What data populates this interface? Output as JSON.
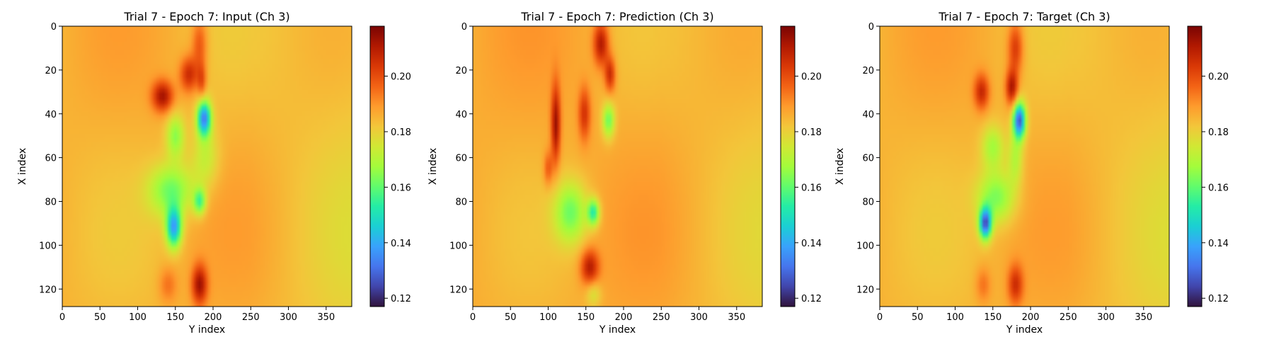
{
  "colors": {
    "colormap": "turbo",
    "stops": [
      "#30123b",
      "#4145ab",
      "#4675ed",
      "#39a2fc",
      "#1bcfd4",
      "#24eca6",
      "#61fc6c",
      "#a4fc3b",
      "#d1e834",
      "#f3c63a",
      "#fe9b2d",
      "#f36315",
      "#d93806",
      "#b11901",
      "#7a0403"
    ]
  },
  "chart_data": [
    {
      "type": "heatmap",
      "title": "Trial 7 - Epoch 7: Input (Ch 3)",
      "xlabel": "Y index",
      "ylabel": "X index",
      "xlim": [
        0,
        384
      ],
      "ylim": [
        128,
        0
      ],
      "xticks": [
        "0",
        "50",
        "100",
        "150",
        "200",
        "250",
        "300",
        "350"
      ],
      "yticks": [
        "0",
        "20",
        "40",
        "60",
        "80",
        "100",
        "120"
      ],
      "colorbar": {
        "range": [
          0.117,
          0.218
        ],
        "ticks": [
          "0.12",
          "0.14",
          "0.16",
          "0.18",
          "0.20"
        ]
      },
      "background": 0.185,
      "features": [
        {
          "x": 182,
          "y": 8,
          "rx": 10,
          "ry": 12,
          "v": 0.2
        },
        {
          "x": 168,
          "y": 22,
          "rx": 12,
          "ry": 8,
          "v": 0.207
        },
        {
          "x": 133,
          "y": 32,
          "rx": 14,
          "ry": 7,
          "v": 0.212
        },
        {
          "x": 185,
          "y": 25,
          "rx": 6,
          "ry": 8,
          "v": 0.2
        },
        {
          "x": 188,
          "y": 42,
          "rx": 9,
          "ry": 8,
          "v": 0.135
        },
        {
          "x": 150,
          "y": 50,
          "rx": 12,
          "ry": 10,
          "v": 0.165
        },
        {
          "x": 190,
          "y": 60,
          "rx": 18,
          "ry": 14,
          "v": 0.172
        },
        {
          "x": 145,
          "y": 75,
          "rx": 30,
          "ry": 12,
          "v": 0.162
        },
        {
          "x": 182,
          "y": 80,
          "rx": 8,
          "ry": 6,
          "v": 0.158
        },
        {
          "x": 148,
          "y": 92,
          "rx": 10,
          "ry": 9,
          "v": 0.14
        },
        {
          "x": 182,
          "y": 118,
          "rx": 10,
          "ry": 9,
          "v": 0.212
        },
        {
          "x": 140,
          "y": 118,
          "rx": 12,
          "ry": 8,
          "v": 0.195
        }
      ]
    },
    {
      "type": "heatmap",
      "title": "Trial 7 - Epoch 7: Prediction (Ch 3)",
      "xlabel": "Y index",
      "ylabel": "X index",
      "xlim": [
        0,
        384
      ],
      "ylim": [
        128,
        0
      ],
      "xticks": [
        "0",
        "50",
        "100",
        "150",
        "200",
        "250",
        "300",
        "350"
      ],
      "yticks": [
        "0",
        "20",
        "40",
        "60",
        "80",
        "100",
        "120"
      ],
      "colorbar": {
        "range": [
          0.117,
          0.218
        ],
        "ticks": [
          "0.12",
          "0.14",
          "0.16",
          "0.18",
          "0.20"
        ]
      },
      "background": 0.186,
      "features": [
        {
          "x": 110,
          "y": 45,
          "rx": 6,
          "ry": 18,
          "v": 0.214
        },
        {
          "x": 170,
          "y": 8,
          "rx": 10,
          "ry": 10,
          "v": 0.212
        },
        {
          "x": 182,
          "y": 22,
          "rx": 7,
          "ry": 8,
          "v": 0.208
        },
        {
          "x": 148,
          "y": 40,
          "rx": 8,
          "ry": 12,
          "v": 0.205
        },
        {
          "x": 180,
          "y": 43,
          "rx": 8,
          "ry": 8,
          "v": 0.162
        },
        {
          "x": 130,
          "y": 85,
          "rx": 22,
          "ry": 14,
          "v": 0.163
        },
        {
          "x": 160,
          "y": 85,
          "rx": 8,
          "ry": 6,
          "v": 0.155
        },
        {
          "x": 155,
          "y": 110,
          "rx": 12,
          "ry": 8,
          "v": 0.21
        },
        {
          "x": 160,
          "y": 122,
          "rx": 10,
          "ry": 6,
          "v": 0.175
        },
        {
          "x": 100,
          "y": 65,
          "rx": 6,
          "ry": 8,
          "v": 0.2
        }
      ]
    },
    {
      "type": "heatmap",
      "title": "Trial 7 - Epoch 7: Target (Ch 3)",
      "xlabel": "Y index",
      "ylabel": "X index",
      "xlim": [
        0,
        384
      ],
      "ylim": [
        128,
        0
      ],
      "xticks": [
        "0",
        "50",
        "100",
        "150",
        "200",
        "250",
        "300",
        "350"
      ],
      "yticks": [
        "0",
        "20",
        "40",
        "60",
        "80",
        "100",
        "120"
      ],
      "colorbar": {
        "range": [
          0.117,
          0.218
        ],
        "ticks": [
          "0.12",
          "0.14",
          "0.16",
          "0.18",
          "0.20"
        ]
      },
      "background": 0.185,
      "features": [
        {
          "x": 180,
          "y": 10,
          "rx": 10,
          "ry": 12,
          "v": 0.205
        },
        {
          "x": 135,
          "y": 30,
          "rx": 10,
          "ry": 8,
          "v": 0.207
        },
        {
          "x": 175,
          "y": 28,
          "rx": 8,
          "ry": 8,
          "v": 0.212
        },
        {
          "x": 185,
          "y": 43,
          "rx": 8,
          "ry": 8,
          "v": 0.128
        },
        {
          "x": 150,
          "y": 55,
          "rx": 15,
          "ry": 10,
          "v": 0.168
        },
        {
          "x": 180,
          "y": 60,
          "rx": 10,
          "ry": 12,
          "v": 0.17
        },
        {
          "x": 155,
          "y": 78,
          "rx": 25,
          "ry": 12,
          "v": 0.163
        },
        {
          "x": 140,
          "y": 90,
          "rx": 8,
          "ry": 7,
          "v": 0.13
        },
        {
          "x": 180,
          "y": 118,
          "rx": 10,
          "ry": 9,
          "v": 0.205
        },
        {
          "x": 137,
          "y": 118,
          "rx": 10,
          "ry": 8,
          "v": 0.195
        }
      ]
    }
  ]
}
